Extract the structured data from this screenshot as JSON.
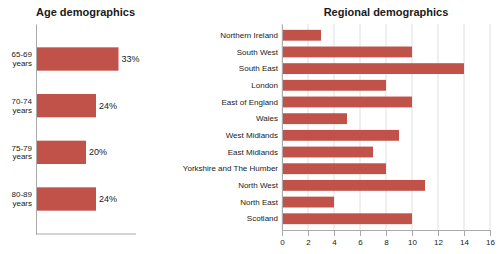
{
  "chart_data": [
    {
      "type": "bar",
      "orientation": "horizontal",
      "title": "Age demographics",
      "categories": [
        "65-69\nyears",
        "70-74\nyears",
        "75-79\nyears",
        "80-89\nyears"
      ],
      "values": [
        33,
        24,
        20,
        24
      ],
      "value_labels": [
        "33%",
        "24%",
        "20%",
        "24%"
      ],
      "data_labels": true,
      "color": "#c0524a",
      "xlim": [
        0,
        40
      ],
      "tick_labels": "y",
      "grid": false
    },
    {
      "type": "bar",
      "orientation": "horizontal",
      "title": "Regional demographics",
      "categories": [
        "Northern Ireland",
        "South West",
        "South East",
        "London",
        "East of England",
        "Wales",
        "West Midlands",
        "East Midlands",
        "Yorkshire and The Humber",
        "North West",
        "North East",
        "Scotland"
      ],
      "values": [
        3,
        10,
        14,
        8,
        10,
        5,
        9,
        7,
        8,
        11,
        4,
        10
      ],
      "color": "#c0524a",
      "xlim": [
        0,
        16
      ],
      "xticks": [
        0,
        2,
        4,
        6,
        8,
        10,
        12,
        14,
        16
      ],
      "grid": true
    }
  ]
}
